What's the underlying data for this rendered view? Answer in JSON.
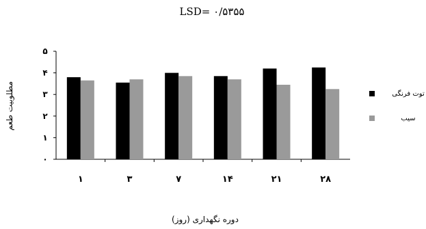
{
  "chart_data": {
    "type": "bar",
    "title": "LSD= ۰/۵۳۵۵",
    "xlabel": "دوره نگهداری (روز)",
    "ylabel": "مطلوبیت طعم",
    "categories": [
      "۱",
      "۳",
      "۷",
      "۱۴",
      "۲۱",
      "۲۸"
    ],
    "yticks": [
      "۰",
      "۱",
      "۲",
      "۳",
      "۴",
      "۵"
    ],
    "ylim": [
      0,
      5
    ],
    "grid": false,
    "legend_position": "right",
    "series": [
      {
        "name": "توت فرنگی",
        "color": "#000000",
        "values": [
          3.8,
          3.55,
          4.0,
          3.85,
          4.2,
          4.25
        ]
      },
      {
        "name": "سیب",
        "color": "#9a9a9a",
        "values": [
          3.65,
          3.7,
          3.85,
          3.7,
          3.45,
          3.25
        ]
      }
    ]
  }
}
